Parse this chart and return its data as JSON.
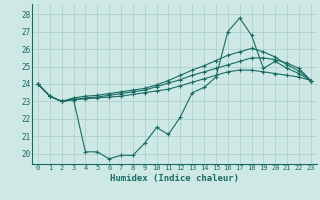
{
  "xlabel": "Humidex (Indice chaleur)",
  "bg_color": "#cde8e5",
  "grid_color": "#a8cdc9",
  "line_color": "#1a6b63",
  "xlim": [
    -0.5,
    23.5
  ],
  "ylim": [
    19.4,
    28.6
  ],
  "yticks": [
    20,
    21,
    22,
    23,
    24,
    25,
    26,
    27,
    28
  ],
  "xticks": [
    0,
    1,
    2,
    3,
    4,
    5,
    6,
    7,
    8,
    9,
    10,
    11,
    12,
    13,
    14,
    15,
    16,
    17,
    18,
    19,
    20,
    21,
    22,
    23
  ],
  "series": [
    [
      24.0,
      23.3,
      23.0,
      23.1,
      20.1,
      20.1,
      19.7,
      19.9,
      19.9,
      20.6,
      21.5,
      21.1,
      22.1,
      23.5,
      23.8,
      24.4,
      27.0,
      27.8,
      26.8,
      24.9,
      25.3,
      24.9,
      24.6,
      24.2
    ],
    [
      24.0,
      23.3,
      23.0,
      23.1,
      23.15,
      23.2,
      23.25,
      23.3,
      23.4,
      23.5,
      23.6,
      23.7,
      23.9,
      24.1,
      24.3,
      24.5,
      24.7,
      24.8,
      24.8,
      24.7,
      24.6,
      24.5,
      24.4,
      24.2
    ],
    [
      24.0,
      23.3,
      23.0,
      23.1,
      23.2,
      23.25,
      23.35,
      23.45,
      23.55,
      23.65,
      23.85,
      24.05,
      24.25,
      24.5,
      24.7,
      24.9,
      25.1,
      25.3,
      25.5,
      25.5,
      25.4,
      25.2,
      24.9,
      24.2
    ],
    [
      24.0,
      23.3,
      23.0,
      23.2,
      23.3,
      23.35,
      23.45,
      23.55,
      23.65,
      23.75,
      23.95,
      24.2,
      24.5,
      24.8,
      25.05,
      25.35,
      25.65,
      25.85,
      26.05,
      25.85,
      25.55,
      25.1,
      24.75,
      24.2
    ]
  ]
}
